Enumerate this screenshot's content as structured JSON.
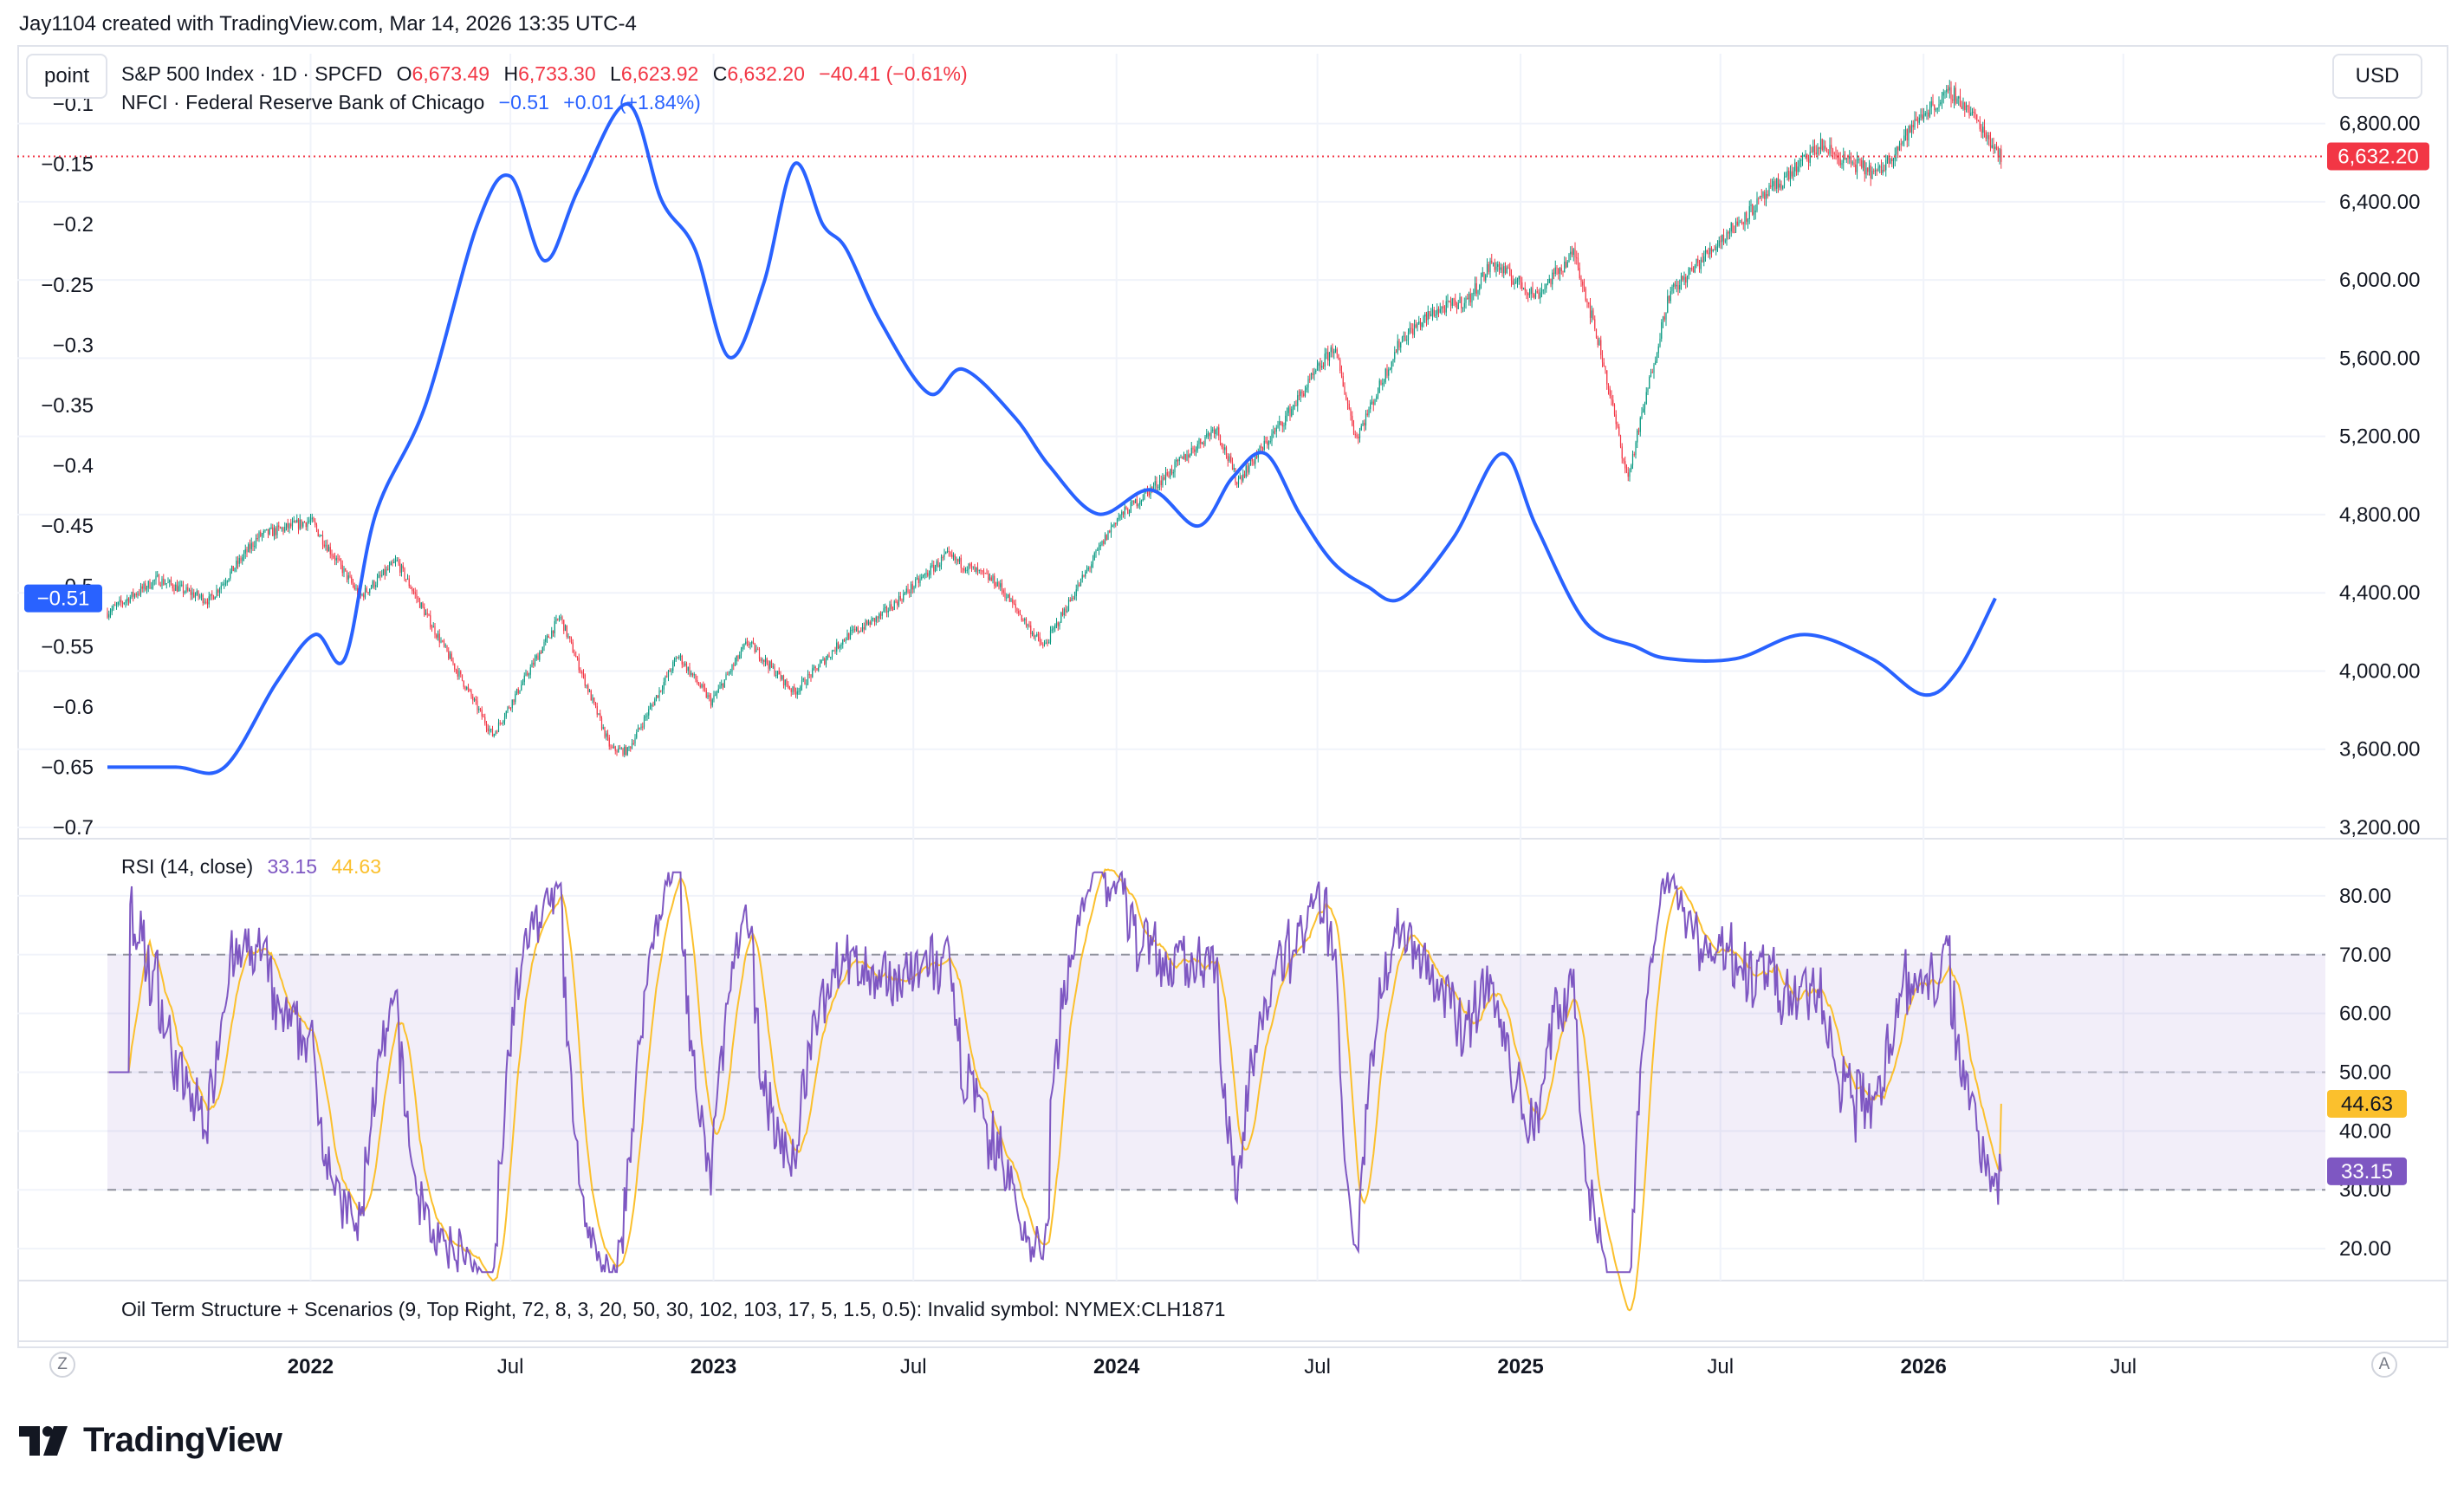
{
  "header": {
    "text": "Jay1104 created with TradingView.com, Mar 14, 2026 13:35 UTC-4"
  },
  "buttons": {
    "left_scale": "point",
    "right_scale": "USD"
  },
  "legend_main": {
    "symbol": "S&P 500 Index · 1D · SPCFD",
    "o_label": "O",
    "o_value": "6,673.49",
    "h_label": "H",
    "h_value": "6,733.30",
    "l_label": "L",
    "l_value": "6,623.92",
    "c_label": "C",
    "c_value": "6,632.20",
    "change": "−40.41 (−0.61%)"
  },
  "legend_nfci": {
    "name": "NFCI · Federal Reserve Bank of Chicago",
    "value": "−0.51",
    "change": "+0.01 (+1.84%)"
  },
  "legend_rsi": {
    "name": "RSI (14, close)",
    "value": "33.15",
    "ma_value": "44.63"
  },
  "legend_oil": {
    "text": "Oil Term Structure + Scenarios (9, Top Right, 72, 8, 3, 20, 50, 30, 102, 103, 17, 5, 1.5, 0.5): Invalid symbol: NYMEX:CLH1871"
  },
  "time_axis": [
    "2022",
    "Jul",
    "2023",
    "Jul",
    "2024",
    "Jul",
    "2025",
    "Jul",
    "2026",
    "Jul"
  ],
  "corner_left": "Z",
  "corner_right": "A",
  "logo_text": "TradingView",
  "colors": {
    "nfci": "#2962ff",
    "up": "#089981",
    "down": "#f23645",
    "rsi": "#7e57c2",
    "rsi_ma": "#fbc02d",
    "rsi_band": "#7e57c2",
    "price_tag": "#f23645"
  },
  "chart_data": [
    {
      "type": "line",
      "name": "NFCI · Federal Reserve Bank of Chicago",
      "axis": "left",
      "ylim": [
        -0.7,
        -0.1
      ],
      "yticks": [
        "−0.1",
        "−0.15",
        "−0.2",
        "−0.25",
        "−0.3",
        "−0.35",
        "−0.4",
        "−0.45",
        "−0.5",
        "−0.55",
        "−0.6",
        "−0.65",
        "−0.7"
      ],
      "last_value_label": "−0.51",
      "x": [
        "2021-07-01",
        "2021-09-01",
        "2021-10-15",
        "2021-12-01",
        "2022-01-05",
        "2022-02-01",
        "2022-03-01",
        "2022-04-15",
        "2022-06-01",
        "2022-07-01",
        "2022-08-01",
        "2022-09-01",
        "2022-10-15",
        "2022-11-15",
        "2022-12-15",
        "2023-01-15",
        "2023-02-15",
        "2023-03-15",
        "2023-04-10",
        "2023-05-01",
        "2023-06-01",
        "2023-07-15",
        "2023-08-15",
        "2023-10-01",
        "2023-11-01",
        "2023-12-15",
        "2024-02-01",
        "2024-03-15",
        "2024-04-15",
        "2024-05-15",
        "2024-06-15",
        "2024-07-15",
        "2024-08-15",
        "2024-09-15",
        "2024-11-01",
        "2024-12-15",
        "2025-01-15",
        "2025-03-01",
        "2025-04-15",
        "2025-05-15",
        "2025-07-15",
        "2025-09-15",
        "2025-11-15",
        "2026-01-01",
        "2026-02-01",
        "2026-03-07"
      ],
      "y": [
        -0.65,
        -0.65,
        -0.65,
        -0.58,
        -0.54,
        -0.56,
        -0.44,
        -0.35,
        -0.2,
        -0.16,
        -0.23,
        -0.17,
        -0.1,
        -0.18,
        -0.22,
        -0.31,
        -0.25,
        -0.15,
        -0.2,
        -0.22,
        -0.28,
        -0.34,
        -0.32,
        -0.36,
        -0.4,
        -0.44,
        -0.42,
        -0.45,
        -0.41,
        -0.39,
        -0.44,
        -0.48,
        -0.5,
        -0.51,
        -0.46,
        -0.39,
        -0.45,
        -0.53,
        -0.55,
        -0.56,
        -0.56,
        -0.54,
        -0.56,
        -0.59,
        -0.57,
        -0.51
      ]
    },
    {
      "type": "candlestick",
      "name": "S&P 500 Index · 1D · SPCFD",
      "axis": "right",
      "ylim": [
        3200,
        6900
      ],
      "yticks": [
        "6,800.00",
        "6,400.00",
        "6,000.00",
        "5,600.00",
        "5,200.00",
        "4,800.00",
        "4,400.00",
        "4,000.00",
        "3,600.00",
        "3,200.00"
      ],
      "last_value_label": "6,632.20",
      "x": [
        "2021-07-01",
        "2021-08-15",
        "2021-10-01",
        "2021-11-15",
        "2022-01-01",
        "2022-02-15",
        "2022-03-20",
        "2022-05-01",
        "2022-06-15",
        "2022-08-15",
        "2022-09-30",
        "2022-10-15",
        "2022-11-30",
        "2022-12-30",
        "2023-02-01",
        "2023-03-15",
        "2023-04-30",
        "2023-06-01",
        "2023-07-31",
        "2023-09-15",
        "2023-10-27",
        "2023-12-31",
        "2024-02-15",
        "2024-03-31",
        "2024-04-19",
        "2024-05-31",
        "2024-07-16",
        "2024-08-05",
        "2024-09-15",
        "2024-10-15",
        "2024-11-15",
        "2024-12-06",
        "2025-01-15",
        "2025-02-19",
        "2025-03-15",
        "2025-04-08",
        "2025-05-15",
        "2025-06-30",
        "2025-08-15",
        "2025-09-30",
        "2025-10-15",
        "2025-11-20",
        "2025-12-31",
        "2026-01-27",
        "2026-02-15",
        "2026-03-13"
      ],
      "close": [
        4300,
        4470,
        4360,
        4690,
        4770,
        4380,
        4560,
        4130,
        3670,
        4280,
        3600,
        3590,
        4080,
        3840,
        4150,
        3890,
        4170,
        4280,
        4590,
        4450,
        4120,
        4770,
        5000,
        5250,
        4970,
        5280,
        5660,
        5190,
        5700,
        5840,
        5900,
        6090,
        5920,
        6140,
        5630,
        4980,
        5920,
        6200,
        6450,
        6690,
        6630,
        6540,
        6850,
        6960,
        6840,
        6632
      ]
    },
    {
      "type": "line",
      "name": "RSI (14, close)",
      "panel": "RSI",
      "ylim": [
        15,
        85
      ],
      "yticks": [
        "80.00",
        "70.00",
        "60.00",
        "50.00",
        "40.00",
        "30.00",
        "20.00"
      ],
      "bands": [
        30,
        50,
        70
      ],
      "last_value": 33.15,
      "ma_last_value": 44.63
    }
  ]
}
